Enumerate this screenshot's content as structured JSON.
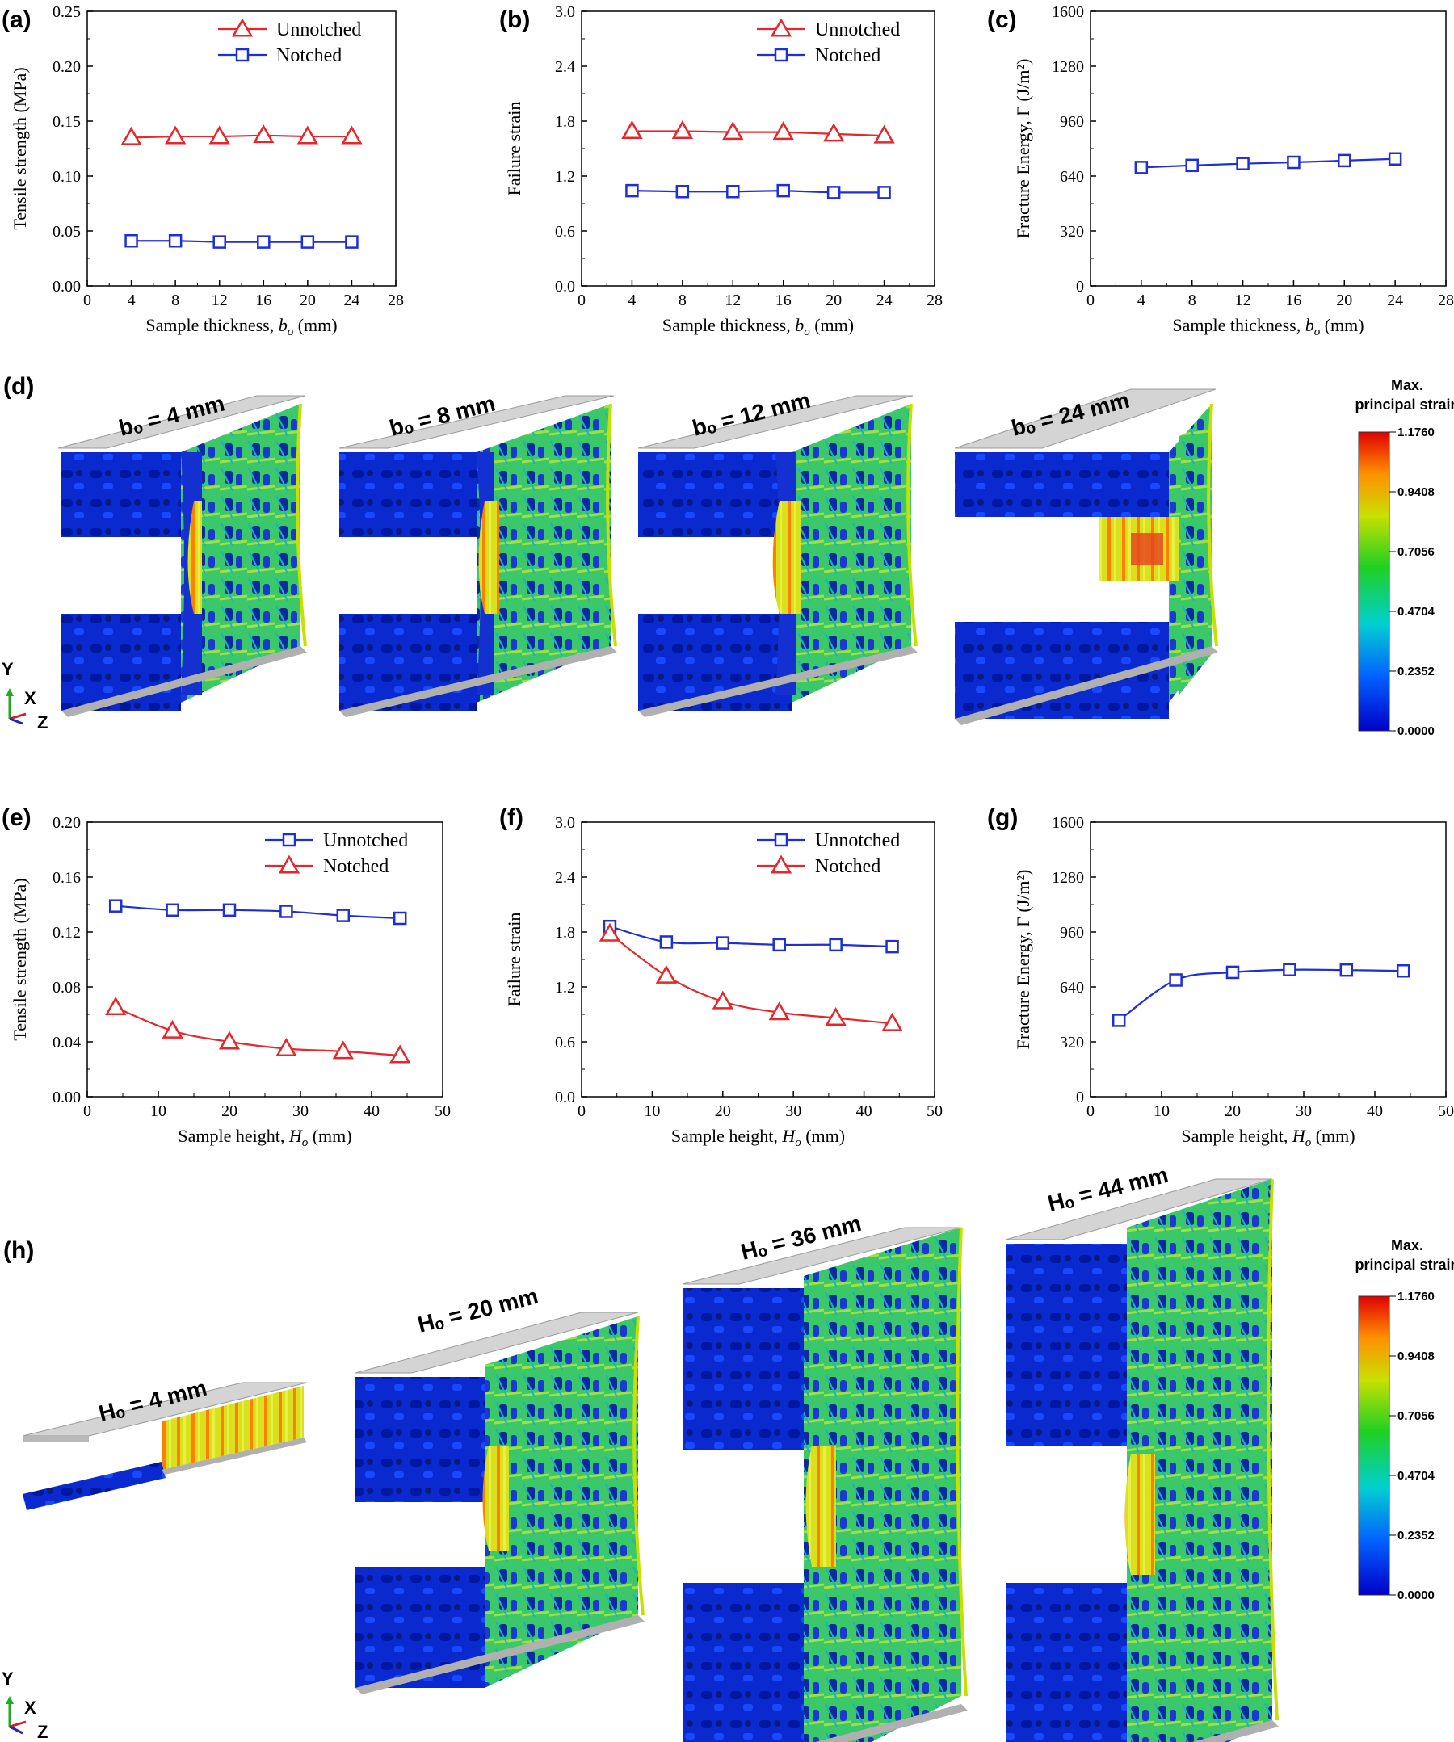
{
  "chart_data": [
    {
      "id": "a",
      "panel_label": "(a)",
      "type": "line",
      "xlabel": "Sample thickness, ",
      "xlabel_var": "b",
      "xlabel_sub": "o",
      "xlabel_unit": " (mm)",
      "ylabel": "Tensile strength (MPa)",
      "xlim": [
        0,
        28
      ],
      "ylim": [
        0,
        0.25
      ],
      "xticks": [
        "0",
        "4",
        "8",
        "12",
        "16",
        "20",
        "24",
        "28"
      ],
      "yticks": [
        "0.00",
        "0.05",
        "0.10",
        "0.15",
        "0.20",
        "0.25"
      ],
      "x": [
        4,
        8,
        12,
        16,
        20,
        24
      ],
      "legend": "top-right",
      "series": [
        {
          "name": "Unnotched",
          "color": "#e8262a",
          "marker": "triangle",
          "smooth": false,
          "values": [
            0.135,
            0.136,
            0.136,
            0.137,
            0.136,
            0.136
          ]
        },
        {
          "name": "Notched",
          "color": "#1f2fd6",
          "marker": "square",
          "smooth": false,
          "values": [
            0.041,
            0.041,
            0.04,
            0.04,
            0.04,
            0.04
          ]
        }
      ]
    },
    {
      "id": "b",
      "panel_label": "(b)",
      "type": "line",
      "xlabel": "Sample thickness, ",
      "xlabel_var": "b",
      "xlabel_sub": "o",
      "xlabel_unit": " (mm)",
      "ylabel": "Failure strain",
      "xlim": [
        0,
        28
      ],
      "ylim": [
        0,
        3.0
      ],
      "xticks": [
        "0",
        "4",
        "8",
        "12",
        "16",
        "20",
        "24",
        "28"
      ],
      "yticks": [
        "0.0",
        "0.6",
        "1.2",
        "1.8",
        "2.4",
        "3.0"
      ],
      "x": [
        4,
        8,
        12,
        16,
        20,
        24
      ],
      "legend": "top-right",
      "series": [
        {
          "name": "Unnotched",
          "color": "#e8262a",
          "marker": "triangle",
          "smooth": false,
          "values": [
            1.69,
            1.69,
            1.68,
            1.68,
            1.66,
            1.64
          ]
        },
        {
          "name": "Notched",
          "color": "#1f2fd6",
          "marker": "square",
          "smooth": false,
          "values": [
            1.04,
            1.03,
            1.03,
            1.04,
            1.02,
            1.02
          ]
        }
      ]
    },
    {
      "id": "c",
      "panel_label": "(c)",
      "type": "line",
      "xlabel": "Sample thickness, ",
      "xlabel_var": "b",
      "xlabel_sub": "o",
      "xlabel_unit": " (mm)",
      "ylabel": "Fracture Energy, Γ (J/m²)",
      "xlim": [
        0,
        28
      ],
      "ylim": [
        0,
        1600
      ],
      "xticks": [
        "0",
        "4",
        "8",
        "12",
        "16",
        "20",
        "24",
        "28"
      ],
      "yticks": [
        "0",
        "320",
        "640",
        "960",
        "1280",
        "1600"
      ],
      "x": [
        4,
        8,
        12,
        16,
        20,
        24
      ],
      "legend": "none",
      "series": [
        {
          "name": "Fracture energy",
          "color": "#1f2fd6",
          "marker": "square",
          "smooth": false,
          "values": [
            690,
            702,
            712,
            720,
            730,
            740
          ]
        }
      ]
    },
    {
      "id": "e",
      "panel_label": "(e)",
      "type": "line",
      "xlabel": "Sample height, ",
      "xlabel_var": "H",
      "xlabel_sub": "o",
      "xlabel_unit": " (mm)",
      "ylabel": "Tensile strength (MPa)",
      "xlim": [
        0,
        50
      ],
      "ylim": [
        0,
        0.2
      ],
      "xticks": [
        "0",
        "10",
        "20",
        "30",
        "40",
        "50"
      ],
      "yticks": [
        "0.00",
        "0.04",
        "0.08",
        "0.12",
        "0.16",
        "0.20"
      ],
      "x": [
        4,
        12,
        20,
        28,
        36,
        44
      ],
      "legend": "top-right",
      "series": [
        {
          "name": "Unnotched",
          "color": "#1f2fd6",
          "marker": "square",
          "smooth": true,
          "values": [
            0.139,
            0.136,
            0.136,
            0.135,
            0.132,
            0.13
          ]
        },
        {
          "name": "Notched",
          "color": "#e8262a",
          "marker": "triangle",
          "smooth": true,
          "values": [
            0.065,
            0.048,
            0.04,
            0.035,
            0.033,
            0.03
          ]
        }
      ]
    },
    {
      "id": "f",
      "panel_label": "(f)",
      "type": "line",
      "xlabel": "Sample height, ",
      "xlabel_var": "H",
      "xlabel_sub": "o",
      "xlabel_unit": " (mm)",
      "ylabel": "Failure strain",
      "xlim": [
        0,
        50
      ],
      "ylim": [
        0,
        3.0
      ],
      "xticks": [
        "0",
        "10",
        "20",
        "30",
        "40",
        "50"
      ],
      "yticks": [
        "0.0",
        "0.6",
        "1.2",
        "1.8",
        "2.4",
        "3.0"
      ],
      "x": [
        4,
        12,
        20,
        28,
        36,
        44
      ],
      "legend": "top-right",
      "series": [
        {
          "name": "Unnotched",
          "color": "#1f2fd6",
          "marker": "square",
          "smooth": true,
          "values": [
            1.86,
            1.69,
            1.68,
            1.66,
            1.66,
            1.64
          ]
        },
        {
          "name": "Notched",
          "color": "#e8262a",
          "marker": "triangle",
          "smooth": true,
          "values": [
            1.78,
            1.32,
            1.04,
            0.92,
            0.86,
            0.8
          ]
        }
      ]
    },
    {
      "id": "g",
      "panel_label": "(g)",
      "type": "line",
      "xlabel": "Sample height, ",
      "xlabel_var": "H",
      "xlabel_sub": "o",
      "xlabel_unit": " (mm)",
      "ylabel": "Fracture Energy, Γ (J/m²)",
      "xlim": [
        0,
        50
      ],
      "ylim": [
        0,
        1600
      ],
      "xticks": [
        "0",
        "10",
        "20",
        "30",
        "40",
        "50"
      ],
      "yticks": [
        "0",
        "320",
        "640",
        "960",
        "1280",
        "1600"
      ],
      "x": [
        4,
        12,
        20,
        28,
        36,
        44
      ],
      "legend": "none",
      "series": [
        {
          "name": "Fracture energy",
          "color": "#1f2fd6",
          "marker": "square",
          "smooth": true,
          "values": [
            445,
            680,
            725,
            740,
            738,
            733
          ]
        }
      ]
    }
  ],
  "simulations": {
    "d": {
      "panel_label": "(d)",
      "samples": [
        {
          "label": "bₒ = 4 mm"
        },
        {
          "label": "bₒ = 8 mm"
        },
        {
          "label": "bₒ = 12   mm"
        },
        {
          "label": "bₒ = 24 mm"
        }
      ],
      "colorbar": {
        "title_line1": "Max.",
        "title_line2": "principal strain",
        "ticks": [
          "1.1760",
          "0.9408",
          "0.7056",
          "0.4704",
          "0.2352",
          "0.0000"
        ]
      },
      "axes_triad": {
        "y": "Y",
        "x": "X",
        "z": "Z"
      }
    },
    "h": {
      "panel_label": "(h)",
      "samples": [
        {
          "label": "Hₒ = 4 mm"
        },
        {
          "label": "Hₒ = 20 mm"
        },
        {
          "label": "Hₒ = 36 mm"
        },
        {
          "label": "Hₒ = 44 mm"
        }
      ],
      "colorbar": {
        "title_line1": "Max.",
        "title_line2": "principal strain",
        "ticks": [
          "1.1760",
          "0.9408",
          "0.7056",
          "0.4704",
          "0.2352",
          "0.0000"
        ]
      },
      "axes_triad": {
        "y": "Y",
        "x": "X",
        "z": "Z"
      }
    }
  },
  "colors": {
    "red": "#e8262a",
    "blue": "#1f2fd6"
  }
}
